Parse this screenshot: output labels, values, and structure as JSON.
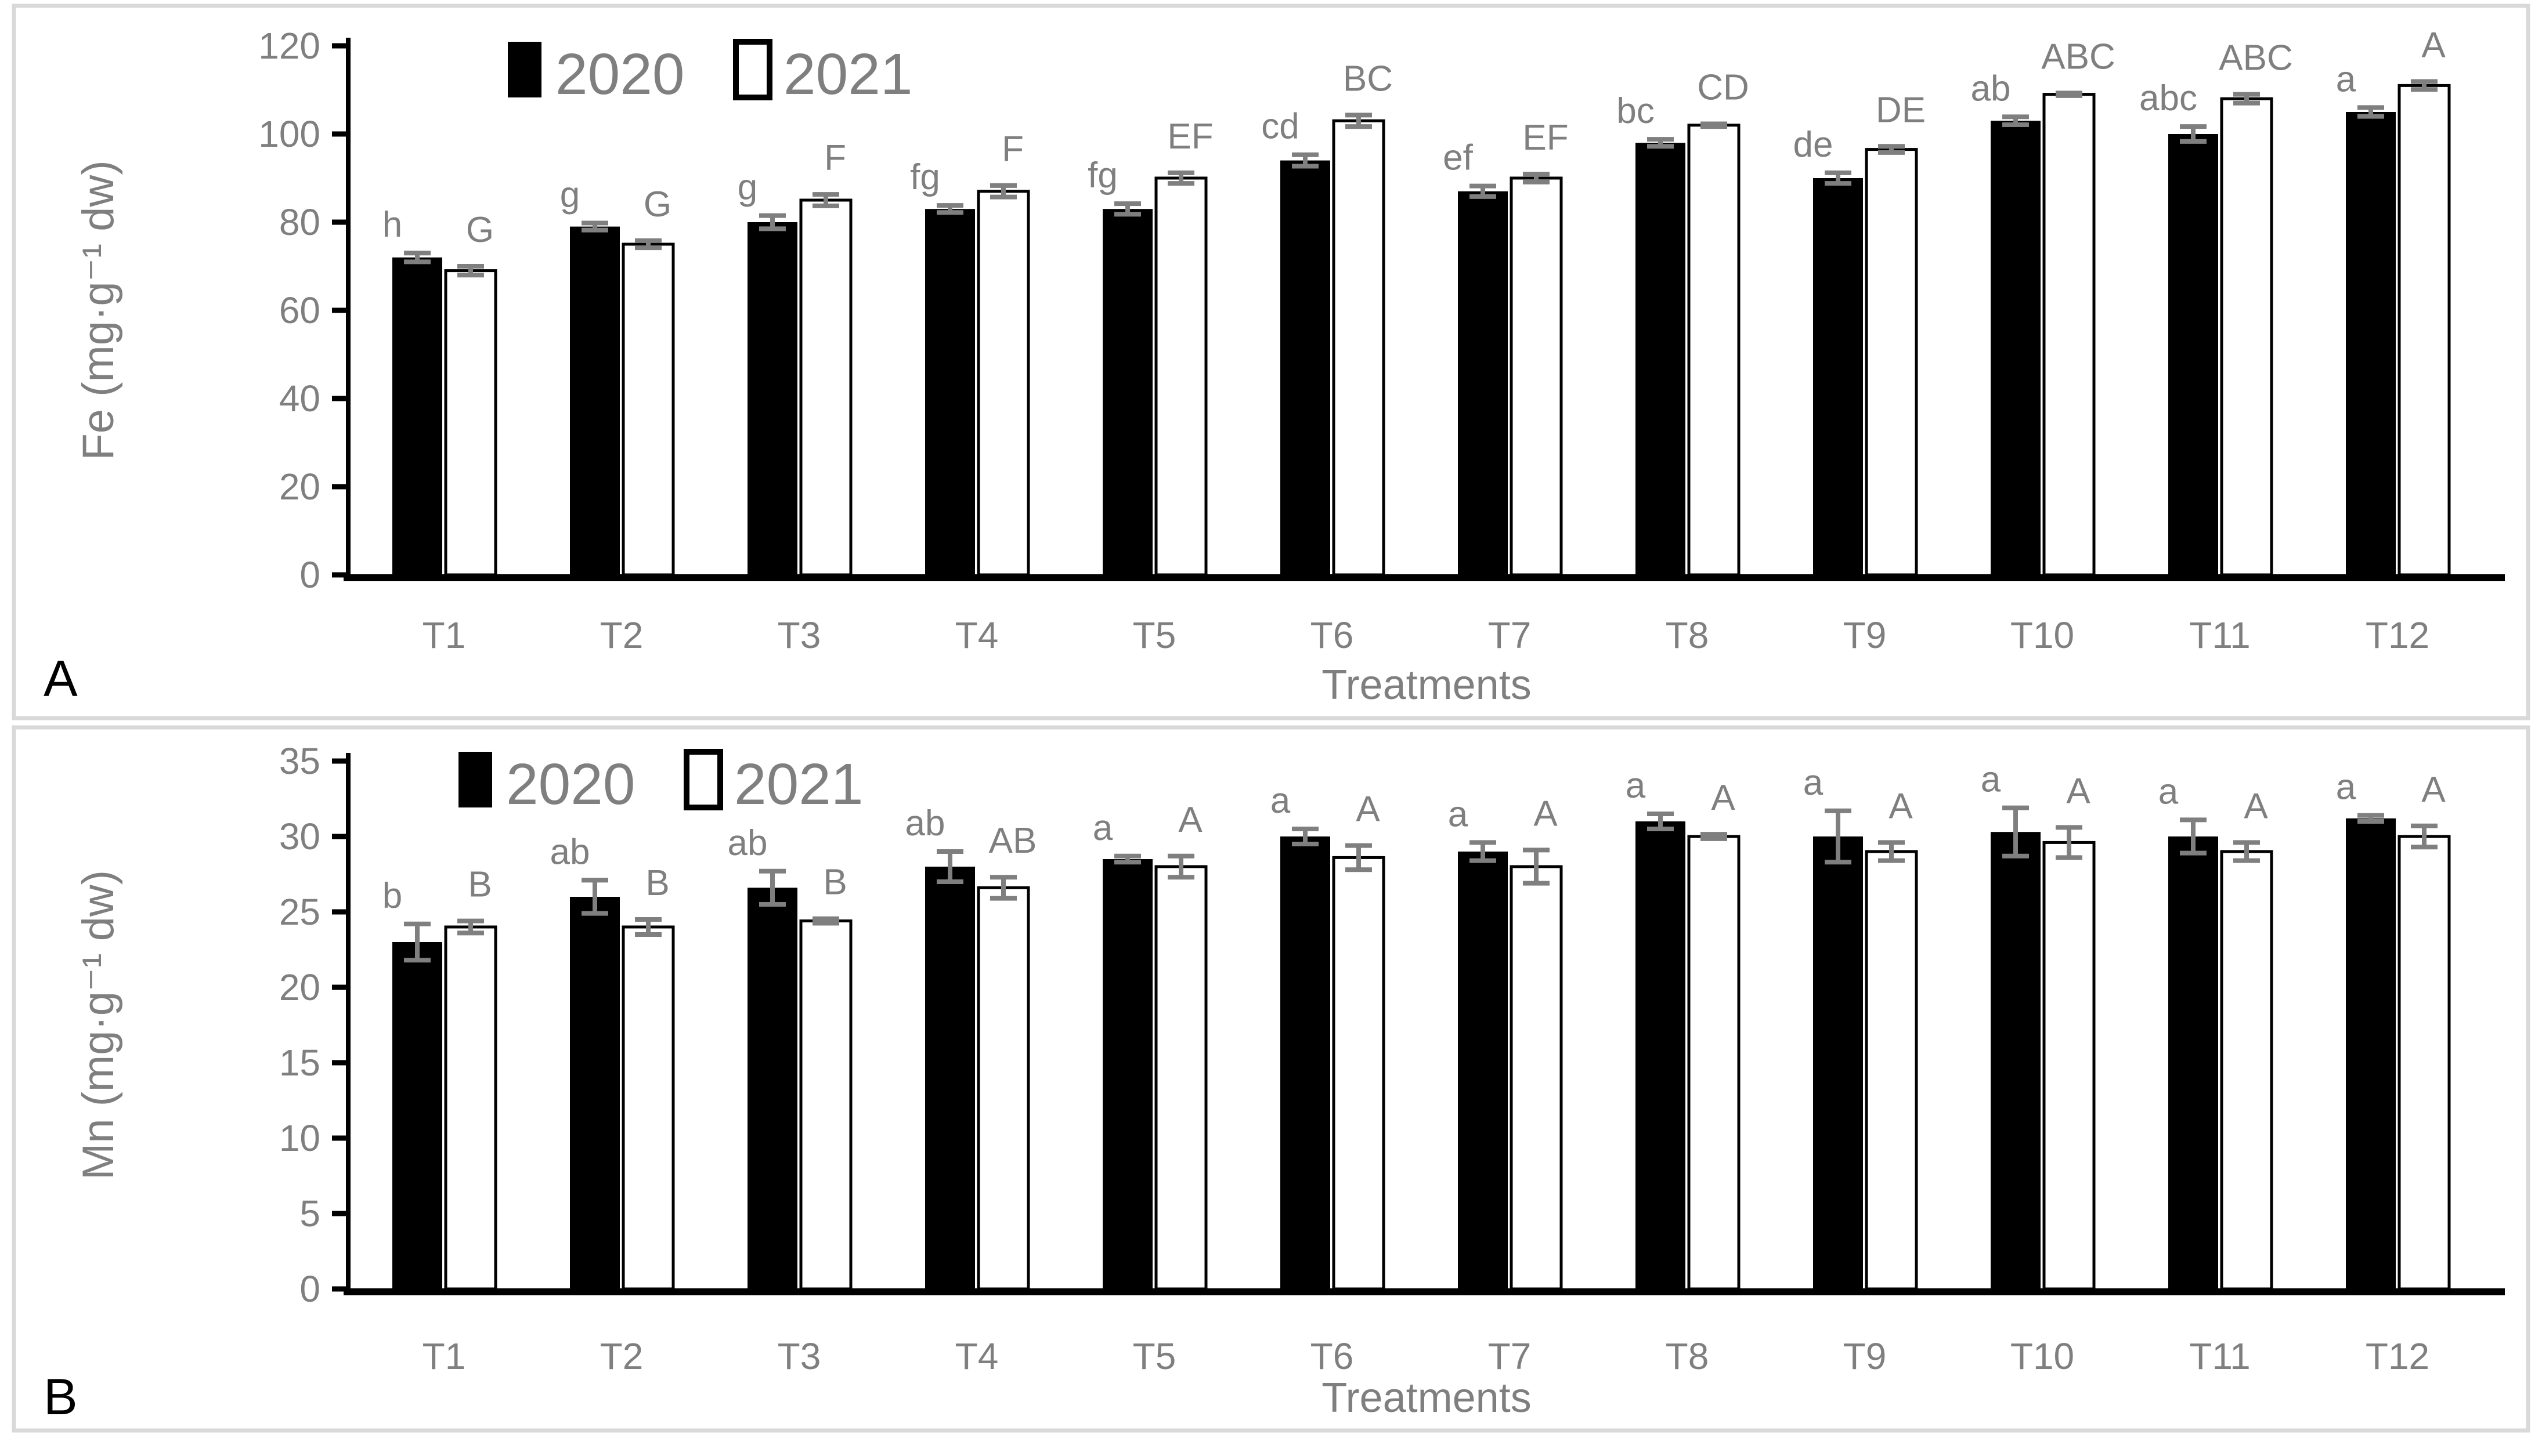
{
  "figure_title": "",
  "styles": {
    "text_gray": "#7f7f7f",
    "bar_black": "#000000",
    "bar_white": "#ffffff",
    "axis_black": "#000000",
    "error_gray": "#7f7f7f",
    "panel_border_gray": "#d9d9d9",
    "background": "#ffffff"
  },
  "chart_data": [
    {
      "type": "bar",
      "panel_label": "A",
      "ylabel": "Fe (mg·g⁻¹ dw)",
      "xlabel": "Treatments",
      "ylim": [
        0,
        120
      ],
      "ytick_step": 20,
      "yticks": [
        0,
        20,
        40,
        60,
        80,
        100,
        120
      ],
      "grid": false,
      "legend_position": "top-inside-left",
      "legend": [
        "2020",
        "2021"
      ],
      "categories": [
        "T1",
        "T2",
        "T3",
        "T4",
        "T5",
        "T6",
        "T7",
        "T8",
        "T9",
        "T10",
        "T11",
        "T12"
      ],
      "series": [
        {
          "name": "2020",
          "fill": "#000000",
          "values": [
            72,
            79,
            80,
            83,
            83,
            94,
            87,
            98,
            90,
            103,
            100,
            105
          ],
          "errors": [
            1.0,
            0.8,
            1.5,
            0.8,
            1.2,
            1.3,
            1.2,
            0.8,
            1.2,
            0.9,
            1.7,
            1.0
          ],
          "letters": [
            "h",
            "g",
            "g",
            "fg",
            "fg",
            "cd",
            "ef",
            "bc",
            "de",
            "ab",
            "abc",
            "a"
          ]
        },
        {
          "name": "2021",
          "fill": "#ffffff",
          "values": [
            69,
            75,
            85,
            87,
            90,
            103,
            90,
            102,
            96.5,
            109,
            108,
            111
          ],
          "errors": [
            1.0,
            0.8,
            1.3,
            1.3,
            1.2,
            1.3,
            0.9,
            0.3,
            0.7,
            0.3,
            1.0,
            0.9
          ],
          "letters": [
            "G",
            "G",
            "F",
            "F",
            "EF",
            "BC",
            "EF",
            "CD",
            "DE",
            "ABC",
            "ABC",
            "A"
          ]
        }
      ]
    },
    {
      "type": "bar",
      "panel_label": "B",
      "ylabel": "Mn (mg·g⁻¹ dw)",
      "xlabel": "Treatments",
      "ylim": [
        0,
        35
      ],
      "ytick_step": 5,
      "yticks": [
        0,
        5,
        10,
        15,
        20,
        25,
        30,
        35
      ],
      "grid": false,
      "legend_position": "top-inside-left",
      "legend": [
        "2020",
        "2021"
      ],
      "categories": [
        "T1",
        "T2",
        "T3",
        "T4",
        "T5",
        "T6",
        "T7",
        "T8",
        "T9",
        "T10",
        "T11",
        "T12"
      ],
      "series": [
        {
          "name": "2020",
          "fill": "#000000",
          "values": [
            23,
            26,
            26.6,
            28,
            28.5,
            30,
            29,
            31,
            30,
            30.3,
            30,
            31.2
          ],
          "errors": [
            1.2,
            1.1,
            1.1,
            1.0,
            0.2,
            0.5,
            0.6,
            0.5,
            1.7,
            1.6,
            1.1,
            0.2
          ],
          "letters": [
            "b",
            "ab",
            "ab",
            "ab",
            "a",
            "a",
            "a",
            "a",
            "a",
            "a",
            "a",
            "a"
          ]
        },
        {
          "name": "2021",
          "fill": "#ffffff",
          "values": [
            24,
            24,
            24.4,
            26.6,
            28,
            28.6,
            28,
            30,
            29,
            29.6,
            29,
            30
          ],
          "errors": [
            0.4,
            0.5,
            0.15,
            0.7,
            0.7,
            0.8,
            1.1,
            0.15,
            0.6,
            1.0,
            0.6,
            0.7
          ],
          "letters": [
            "B",
            "B",
            "B",
            "AB",
            "A",
            "A",
            "A",
            "A",
            "A",
            "A",
            "A",
            "A"
          ]
        }
      ]
    }
  ]
}
